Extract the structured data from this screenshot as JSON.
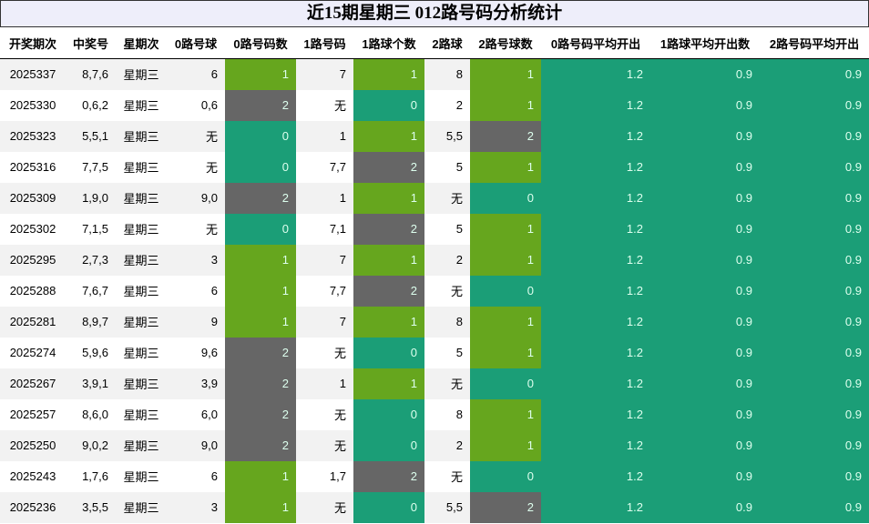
{
  "title": "近15期星期三 012路号码分析统计",
  "table": {
    "headers": [
      "开奖期次",
      "中奖号",
      "星期次",
      "0路号球",
      "0路号码数",
      "1路号码",
      "1路球个数",
      "2路球",
      "2路号球数",
      "0路号码平均开出",
      "1路球平均开出数",
      "2路号码平均开出"
    ],
    "rows": [
      [
        "2025337",
        "8,7,6",
        "星期三",
        "6",
        1,
        "7",
        1,
        "8",
        1,
        1.2,
        0.9,
        0.9
      ],
      [
        "2025330",
        "0,6,2",
        "星期三",
        "0,6",
        2,
        "无",
        0,
        "2",
        1,
        1.2,
        0.9,
        0.9
      ],
      [
        "2025323",
        "5,5,1",
        "星期三",
        "无",
        0,
        "1",
        1,
        "5,5",
        2,
        1.2,
        0.9,
        0.9
      ],
      [
        "2025316",
        "7,7,5",
        "星期三",
        "无",
        0,
        "7,7",
        2,
        "5",
        1,
        1.2,
        0.9,
        0.9
      ],
      [
        "2025309",
        "1,9,0",
        "星期三",
        "9,0",
        2,
        "1",
        1,
        "无",
        0,
        1.2,
        0.9,
        0.9
      ],
      [
        "2025302",
        "7,1,5",
        "星期三",
        "无",
        0,
        "7,1",
        2,
        "5",
        1,
        1.2,
        0.9,
        0.9
      ],
      [
        "2025295",
        "2,7,3",
        "星期三",
        "3",
        1,
        "7",
        1,
        "2",
        1,
        1.2,
        0.9,
        0.9
      ],
      [
        "2025288",
        "7,6,7",
        "星期三",
        "6",
        1,
        "7,7",
        2,
        "无",
        0,
        1.2,
        0.9,
        0.9
      ],
      [
        "2025281",
        "8,9,7",
        "星期三",
        "9",
        1,
        "7",
        1,
        "8",
        1,
        1.2,
        0.9,
        0.9
      ],
      [
        "2025274",
        "5,9,6",
        "星期三",
        "9,6",
        2,
        "无",
        0,
        "5",
        1,
        1.2,
        0.9,
        0.9
      ],
      [
        "2025267",
        "3,9,1",
        "星期三",
        "3,9",
        2,
        "1",
        1,
        "无",
        0,
        1.2,
        0.9,
        0.9
      ],
      [
        "2025257",
        "8,6,0",
        "星期三",
        "6,0",
        2,
        "无",
        0,
        "8",
        1,
        1.2,
        0.9,
        0.9
      ],
      [
        "2025250",
        "9,0,2",
        "星期三",
        "9,0",
        2,
        "无",
        0,
        "2",
        1,
        1.2,
        0.9,
        0.9
      ],
      [
        "2025243",
        "1,7,6",
        "星期三",
        "6",
        1,
        "1,7",
        2,
        "无",
        0,
        1.2,
        0.9,
        0.9
      ],
      [
        "2025236",
        "3,5,5",
        "星期三",
        "3",
        1,
        "无",
        0,
        "5,5",
        2,
        1.2,
        0.9,
        0.9
      ]
    ]
  },
  "count_colors": [
    "#1b9e77",
    "#66a61e",
    "#666666"
  ],
  "average_color": "#1b9e77"
}
